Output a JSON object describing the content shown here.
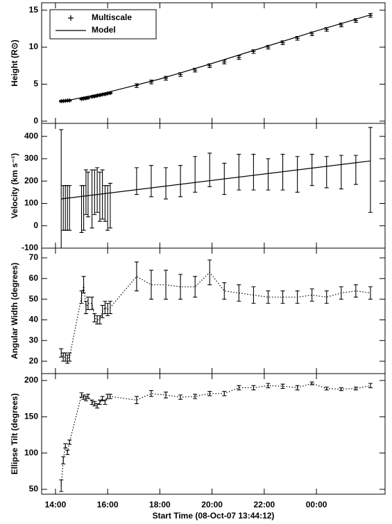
{
  "chart_data": [
    {
      "type": "errorbar",
      "ylabel": "Height (R⊙)",
      "ylim": [
        -0.3,
        16
      ],
      "yticks": [
        0,
        5,
        10,
        15
      ],
      "legend": "upper left",
      "x": [
        14.22,
        14.3,
        14.38,
        14.46,
        14.54,
        15.0,
        15.08,
        15.17,
        15.25,
        15.4,
        15.5,
        15.6,
        15.7,
        15.8,
        15.9,
        16.0,
        16.1,
        17.11,
        17.67,
        18.23,
        18.79,
        19.35,
        19.91,
        20.47,
        21.03,
        21.59,
        22.15,
        22.71,
        23.27,
        23.83,
        24.39,
        24.95,
        25.51,
        26.07
      ],
      "series": [
        {
          "name": "Multiscale",
          "marker": "+",
          "color": "#000000",
          "values": [
            2.7,
            2.72,
            2.75,
            2.78,
            2.8,
            3.0,
            3.05,
            3.1,
            3.15,
            3.3,
            3.35,
            3.45,
            3.5,
            3.6,
            3.65,
            3.75,
            3.8,
            4.8,
            5.3,
            5.8,
            6.3,
            6.9,
            7.5,
            8.0,
            8.6,
            9.4,
            10.0,
            10.6,
            11.2,
            11.8,
            12.4,
            13.0,
            13.6,
            14.3
          ],
          "errors": [
            0.1,
            0.1,
            0.1,
            0.1,
            0.1,
            0.1,
            0.1,
            0.1,
            0.1,
            0.1,
            0.1,
            0.1,
            0.1,
            0.1,
            0.1,
            0.1,
            0.1,
            0.25,
            0.25,
            0.25,
            0.25,
            0.25,
            0.25,
            0.25,
            0.25,
            0.25,
            0.25,
            0.25,
            0.25,
            0.25,
            0.25,
            0.25,
            0.25,
            0.25
          ]
        },
        {
          "name": "Model",
          "line": "solid",
          "color": "#000000",
          "x": [
            14.2,
            16,
            18,
            20,
            22,
            24,
            26.1
          ],
          "values": [
            2.6,
            3.9,
            5.7,
            7.8,
            10.0,
            12.2,
            14.4
          ]
        }
      ]
    },
    {
      "type": "errorbar",
      "ylabel": "Velocity (km s⁻¹)",
      "ylim": [
        -100,
        458
      ],
      "yticks": [
        -100,
        0,
        100,
        200,
        300,
        400
      ],
      "x": [
        14.22,
        14.3,
        14.38,
        14.46,
        14.54,
        15.0,
        15.08,
        15.17,
        15.25,
        15.4,
        15.5,
        15.6,
        15.7,
        15.8,
        15.9,
        16.0,
        16.1,
        17.11,
        17.67,
        18.23,
        18.79,
        19.35,
        19.91,
        20.47,
        21.03,
        21.59,
        22.15,
        22.71,
        23.27,
        23.83,
        24.39,
        24.95,
        25.51,
        26.07
      ],
      "series": [
        {
          "color": "#000000",
          "values": [
            160,
            80,
            80,
            80,
            80,
            75,
            80,
            150,
            140,
            120,
            150,
            160,
            130,
            140,
            100,
            80,
            90,
            200,
            200,
            190,
            200,
            230,
            250,
            210,
            240,
            240,
            230,
            240,
            230,
            250,
            240,
            240,
            250,
            250
          ],
          "errors": [
            270,
            100,
            100,
            100,
            100,
            105,
            100,
            100,
            100,
            130,
            100,
            100,
            110,
            110,
            80,
            100,
            100,
            60,
            70,
            70,
            70,
            80,
            75,
            70,
            80,
            80,
            70,
            80,
            80,
            70,
            70,
            75,
            65,
            190
          ]
        },
        {
          "line": "solid",
          "color": "#000000",
          "x": [
            14.22,
            26.07
          ],
          "values": [
            120,
            290
          ]
        }
      ]
    },
    {
      "type": "errorbar",
      "ylabel": "Angular Width (degrees)",
      "ylim": [
        14,
        74.7
      ],
      "yticks": [
        20,
        30,
        40,
        50,
        60,
        70
      ],
      "x": [
        14.22,
        14.3,
        14.38,
        14.46,
        14.54,
        15.0,
        15.08,
        15.17,
        15.25,
        15.4,
        15.5,
        15.6,
        15.7,
        15.8,
        15.9,
        16.0,
        16.1,
        17.11,
        17.67,
        18.23,
        18.79,
        19.35,
        19.91,
        20.47,
        21.03,
        21.59,
        22.15,
        22.71,
        23.27,
        23.83,
        24.39,
        24.95,
        25.51,
        26.07
      ],
      "series": [
        {
          "line": "dotted",
          "color": "#000000",
          "values": [
            24,
            22,
            22,
            21,
            22,
            51,
            57,
            46,
            48,
            48,
            41,
            40,
            40,
            44,
            46,
            45,
            46,
            61,
            57,
            57,
            56,
            56,
            63,
            54,
            53,
            52,
            51,
            51,
            51,
            52,
            51,
            53,
            54,
            53
          ],
          "errors": [
            2,
            2,
            2,
            2,
            2,
            3,
            4,
            3,
            3,
            3,
            2,
            2,
            2,
            3,
            3,
            3,
            3,
            7,
            7,
            7,
            6,
            5,
            6,
            4,
            4,
            4,
            3,
            3,
            3,
            3,
            3,
            3,
            3,
            3
          ]
        }
      ]
    },
    {
      "type": "errorbar",
      "ylabel": "Ellipse Tilt (degrees)",
      "ylim": [
        43.3,
        209.5
      ],
      "yticks": [
        50,
        100,
        150,
        200
      ],
      "xlabel": "Start Time (08-Oct-07 13:44:12)",
      "xlim": [
        13.47,
        26.63
      ],
      "xticks": [
        {
          "value": 14,
          "label": "14:00"
        },
        {
          "value": 16,
          "label": "16:00"
        },
        {
          "value": 18,
          "label": "18:00"
        },
        {
          "value": 20,
          "label": "20:00"
        },
        {
          "value": 22,
          "label": "22:00"
        },
        {
          "value": 24,
          "label": "00:00"
        }
      ],
      "x": [
        14.22,
        14.3,
        14.38,
        14.46,
        14.54,
        15.0,
        15.08,
        15.17,
        15.25,
        15.4,
        15.5,
        15.6,
        15.7,
        15.8,
        15.9,
        16.0,
        16.1,
        17.11,
        17.67,
        18.23,
        18.79,
        19.35,
        19.91,
        20.47,
        21.03,
        21.59,
        22.15,
        22.71,
        23.27,
        23.83,
        24.39,
        24.95,
        25.51,
        26.07
      ],
      "series": [
        {
          "line": "dotted",
          "color": "#000000",
          "values": [
            55,
            90,
            110,
            101,
            115,
            180,
            177,
            175,
            178,
            170,
            168,
            165,
            170,
            175,
            170,
            178,
            178,
            173,
            182,
            180,
            177,
            178,
            182,
            182,
            190,
            190,
            193,
            192,
            190,
            196,
            189,
            188,
            189,
            193
          ],
          "errors": [
            8,
            5,
            3,
            3,
            3,
            3,
            3,
            3,
            3,
            3,
            3,
            3,
            3,
            3,
            3,
            3,
            3,
            5,
            4,
            4,
            3,
            3,
            3,
            3,
            3,
            3,
            3,
            3,
            3,
            2,
            2,
            2,
            2,
            3
          ]
        }
      ]
    }
  ]
}
